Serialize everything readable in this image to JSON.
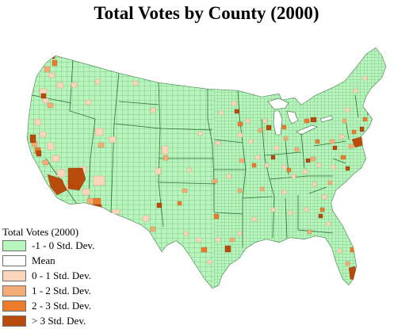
{
  "title": "Total Votes by County (2000)",
  "legend": {
    "title": "Total Votes (2000)",
    "items": [
      {
        "label": "-1 - 0 Std. Dev.",
        "color": "#b7f5bd"
      },
      {
        "label": "Mean",
        "color": "#ffffff"
      },
      {
        "label": "0 - 1 Std. Dev.",
        "color": "#fad6bc"
      },
      {
        "label": "1 - 2 Std. Dev.",
        "color": "#f5ad78"
      },
      {
        "label": "2 - 3 Std. Dev.",
        "color": "#ec7c2c"
      },
      {
        "label": "> 3 Std. Dev.",
        "color": "#b84a0c"
      }
    ]
  },
  "colors": {
    "land": "#b7f5bd",
    "county_lines": "#55a05d",
    "state_lines": "#2f6e38",
    "water": "#ffffff"
  }
}
